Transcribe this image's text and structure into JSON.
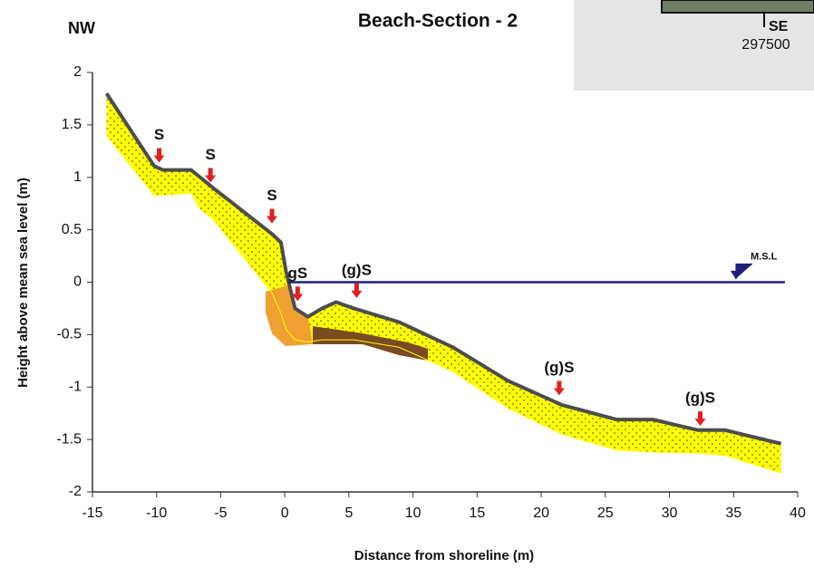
{
  "chart_data": {
    "type": "line",
    "title": "Beach-Section - 2",
    "x_label": "Distance from shoreline (m)",
    "y_label": "Height above mean sea level (m)",
    "left_label": "NW",
    "inset": {
      "labels": [
        "SE",
        "297500"
      ]
    },
    "x": [
      -13.9,
      -10.2,
      -9.5,
      -7.3,
      -6.6,
      -5.6,
      -1.0,
      -0.3,
      0.1,
      0.8,
      1.8,
      2.9,
      4.0,
      5.4,
      8.9,
      13.1,
      17.4,
      21.6,
      25.9,
      28.7,
      32.2,
      34.3,
      38.7
    ],
    "series": [
      {
        "color": "#4d4d4d",
        "values": [
          1.8,
          1.11,
          1.07,
          1.07,
          1.0,
          0.9,
          0.46,
          0.38,
          0.1,
          -0.25,
          -0.33,
          -0.25,
          -0.19,
          -0.25,
          -0.38,
          -0.62,
          -0.94,
          -1.17,
          -1.31,
          -1.31,
          -1.41,
          -1.41,
          -1.54
        ]
      },
      {
        "color": "#ffff00",
        "values": [
          1.4,
          0.83,
          0.83,
          0.85,
          0.7,
          0.6,
          -0.1,
          -0.3,
          -0.45,
          -0.55,
          -0.57,
          -0.55,
          -0.55,
          -0.55,
          -0.62,
          -0.85,
          -1.2,
          -1.45,
          -1.6,
          -1.62,
          -1.63,
          -1.65,
          -1.82
        ]
      }
    ],
    "annotations": [
      {
        "text": "S",
        "x": -9.8,
        "y": 1.14
      },
      {
        "text": "S",
        "x": -5.8,
        "y": 0.95
      },
      {
        "text": "S",
        "x": -1.0,
        "y": 0.56
      },
      {
        "text": "gS",
        "x": 1.0,
        "y": -0.18
      },
      {
        "text": "(g)S",
        "x": 5.6,
        "y": -0.15
      },
      {
        "text": "(g)S",
        "x": 21.4,
        "y": -1.08
      },
      {
        "text": "(g)S",
        "x": 32.4,
        "y": -1.37
      }
    ],
    "msl": {
      "label": "M.S.L",
      "value": 0,
      "x": [
        0.3,
        39
      ],
      "color": "#1f1f7a"
    },
    "xlim": [
      -15,
      40
    ],
    "ylim": [
      -2,
      2
    ],
    "xticks": [
      -15,
      -10,
      -5,
      0,
      5,
      10,
      15,
      20,
      25,
      30,
      35,
      40
    ],
    "yticks": [
      -2,
      -1.5,
      -1,
      -0.5,
      0,
      0.5,
      1,
      1.5,
      2
    ]
  }
}
